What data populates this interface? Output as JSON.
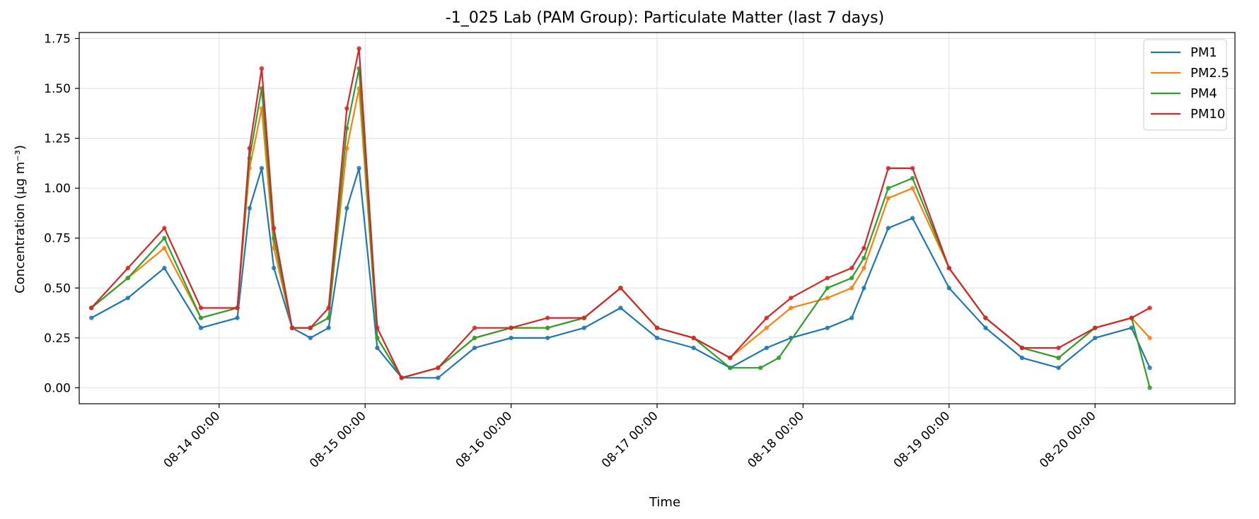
{
  "chart_data": {
    "type": "line",
    "title": "-1_025 Lab (PAM Group): Particulate Matter (last 7 days)",
    "xlabel": "Time",
    "ylabel": "Concentration (μg m⁻³)",
    "x_range": [
      "2024-08-13 01:00",
      "2024-08-20 23:00"
    ],
    "ylim": [
      -0.08,
      1.78
    ],
    "grid": true,
    "legend_position": "top-right",
    "x_ticks": [
      "08-14 00:00",
      "08-15 00:00",
      "08-16 00:00",
      "08-17 00:00",
      "08-18 00:00",
      "08-19 00:00",
      "08-20 00:00"
    ],
    "y_ticks": [
      "0.00",
      "0.25",
      "0.50",
      "0.75",
      "1.00",
      "1.25",
      "1.50",
      "1.75"
    ],
    "series": [
      {
        "name": "PM1",
        "color": "#1f77b4",
        "x": [
          "2024-08-13 03:00",
          "2024-08-13 09:00",
          "2024-08-13 15:00",
          "2024-08-13 21:00",
          "2024-08-14 03:00",
          "2024-08-14 05:00",
          "2024-08-14 07:00",
          "2024-08-14 09:00",
          "2024-08-14 12:00",
          "2024-08-14 15:00",
          "2024-08-14 18:00",
          "2024-08-14 21:00",
          "2024-08-14 23:00",
          "2024-08-15 02:00",
          "2024-08-15 06:00",
          "2024-08-15 12:00",
          "2024-08-15 18:00",
          "2024-08-16 00:00",
          "2024-08-16 06:00",
          "2024-08-16 12:00",
          "2024-08-16 18:00",
          "2024-08-17 00:00",
          "2024-08-17 06:00",
          "2024-08-17 12:00",
          "2024-08-17 18:00",
          "2024-08-17 22:00",
          "2024-08-18 04:00",
          "2024-08-18 08:00",
          "2024-08-18 10:00",
          "2024-08-18 14:00",
          "2024-08-18 18:00",
          "2024-08-19 00:00",
          "2024-08-19 06:00",
          "2024-08-19 12:00",
          "2024-08-19 18:00",
          "2024-08-20 00:00",
          "2024-08-20 06:00",
          "2024-08-20 09:00"
        ],
        "values": [
          0.35,
          0.45,
          0.6,
          0.3,
          0.35,
          0.9,
          1.1,
          0.6,
          0.3,
          0.25,
          0.3,
          0.9,
          1.1,
          0.2,
          0.05,
          0.05,
          0.2,
          0.25,
          0.25,
          0.3,
          0.4,
          0.25,
          0.2,
          0.1,
          0.2,
          0.25,
          0.3,
          0.35,
          0.5,
          0.8,
          0.85,
          0.5,
          0.3,
          0.15,
          0.1,
          0.25,
          0.3,
          0.1
        ]
      },
      {
        "name": "PM2.5",
        "color": "#ff7f0e",
        "x": [
          "2024-08-13 03:00",
          "2024-08-13 09:00",
          "2024-08-13 15:00",
          "2024-08-13 21:00",
          "2024-08-14 03:00",
          "2024-08-14 05:00",
          "2024-08-14 07:00",
          "2024-08-14 09:00",
          "2024-08-14 12:00",
          "2024-08-14 15:00",
          "2024-08-14 18:00",
          "2024-08-14 21:00",
          "2024-08-14 23:00",
          "2024-08-15 02:00",
          "2024-08-15 06:00",
          "2024-08-15 12:00",
          "2024-08-15 18:00",
          "2024-08-16 00:00",
          "2024-08-16 06:00",
          "2024-08-16 12:00",
          "2024-08-16 18:00",
          "2024-08-17 00:00",
          "2024-08-17 06:00",
          "2024-08-17 12:00",
          "2024-08-17 18:00",
          "2024-08-17 22:00",
          "2024-08-18 04:00",
          "2024-08-18 08:00",
          "2024-08-18 10:00",
          "2024-08-18 14:00",
          "2024-08-18 18:00",
          "2024-08-19 00:00",
          "2024-08-19 06:00",
          "2024-08-19 12:00",
          "2024-08-19 18:00",
          "2024-08-20 00:00",
          "2024-08-20 06:00",
          "2024-08-20 09:00"
        ],
        "values": [
          0.4,
          0.55,
          0.7,
          0.35,
          0.4,
          1.1,
          1.4,
          0.7,
          0.3,
          0.3,
          0.35,
          1.2,
          1.5,
          0.25,
          0.05,
          0.1,
          0.25,
          0.3,
          0.3,
          0.35,
          0.5,
          0.3,
          0.25,
          0.15,
          0.3,
          0.4,
          0.45,
          0.5,
          0.6,
          0.95,
          1.0,
          0.6,
          0.35,
          0.2,
          0.15,
          0.3,
          0.35,
          0.25
        ]
      },
      {
        "name": "PM4",
        "color": "#2ca02c",
        "x": [
          "2024-08-13 03:00",
          "2024-08-13 09:00",
          "2024-08-13 15:00",
          "2024-08-13 21:00",
          "2024-08-14 03:00",
          "2024-08-14 05:00",
          "2024-08-14 07:00",
          "2024-08-14 09:00",
          "2024-08-14 12:00",
          "2024-08-14 15:00",
          "2024-08-14 18:00",
          "2024-08-14 21:00",
          "2024-08-14 23:00",
          "2024-08-15 02:00",
          "2024-08-15 06:00",
          "2024-08-15 12:00",
          "2024-08-15 18:00",
          "2024-08-16 00:00",
          "2024-08-16 06:00",
          "2024-08-16 12:00",
          "2024-08-16 18:00",
          "2024-08-17 00:00",
          "2024-08-17 06:00",
          "2024-08-17 12:00",
          "2024-08-17 17:00",
          "2024-08-17 20:00",
          "2024-08-18 04:00",
          "2024-08-18 08:00",
          "2024-08-18 10:00",
          "2024-08-18 14:00",
          "2024-08-18 18:00",
          "2024-08-19 00:00",
          "2024-08-19 06:00",
          "2024-08-19 12:00",
          "2024-08-19 18:00",
          "2024-08-20 00:00",
          "2024-08-20 06:00",
          "2024-08-20 09:00"
        ],
        "values": [
          0.4,
          0.55,
          0.75,
          0.35,
          0.4,
          1.15,
          1.5,
          0.75,
          0.3,
          0.3,
          0.35,
          1.3,
          1.6,
          0.25,
          0.05,
          0.1,
          0.25,
          0.3,
          0.3,
          0.35,
          0.5,
          0.3,
          0.25,
          0.1,
          0.1,
          0.15,
          0.5,
          0.55,
          0.65,
          1.0,
          1.05,
          0.6,
          0.35,
          0.2,
          0.15,
          0.3,
          0.35,
          0.0
        ]
      },
      {
        "name": "PM10",
        "color": "#d62728",
        "x": [
          "2024-08-13 03:00",
          "2024-08-13 09:00",
          "2024-08-13 15:00",
          "2024-08-13 21:00",
          "2024-08-14 03:00",
          "2024-08-14 05:00",
          "2024-08-14 07:00",
          "2024-08-14 09:00",
          "2024-08-14 12:00",
          "2024-08-14 15:00",
          "2024-08-14 18:00",
          "2024-08-14 21:00",
          "2024-08-14 23:00",
          "2024-08-15 02:00",
          "2024-08-15 06:00",
          "2024-08-15 12:00",
          "2024-08-15 18:00",
          "2024-08-16 00:00",
          "2024-08-16 06:00",
          "2024-08-16 12:00",
          "2024-08-16 18:00",
          "2024-08-17 00:00",
          "2024-08-17 06:00",
          "2024-08-17 12:00",
          "2024-08-17 18:00",
          "2024-08-17 22:00",
          "2024-08-18 04:00",
          "2024-08-18 08:00",
          "2024-08-18 10:00",
          "2024-08-18 14:00",
          "2024-08-18 18:00",
          "2024-08-19 00:00",
          "2024-08-19 06:00",
          "2024-08-19 12:00",
          "2024-08-19 18:00",
          "2024-08-20 00:00",
          "2024-08-20 06:00",
          "2024-08-20 09:00"
        ],
        "values": [
          0.4,
          0.6,
          0.8,
          0.4,
          0.4,
          1.2,
          1.6,
          0.8,
          0.3,
          0.3,
          0.4,
          1.4,
          1.7,
          0.3,
          0.05,
          0.1,
          0.3,
          0.3,
          0.35,
          0.35,
          0.5,
          0.3,
          0.25,
          0.15,
          0.35,
          0.45,
          0.55,
          0.6,
          0.7,
          1.1,
          1.1,
          0.6,
          0.35,
          0.2,
          0.2,
          0.3,
          0.35,
          0.4
        ]
      }
    ]
  }
}
